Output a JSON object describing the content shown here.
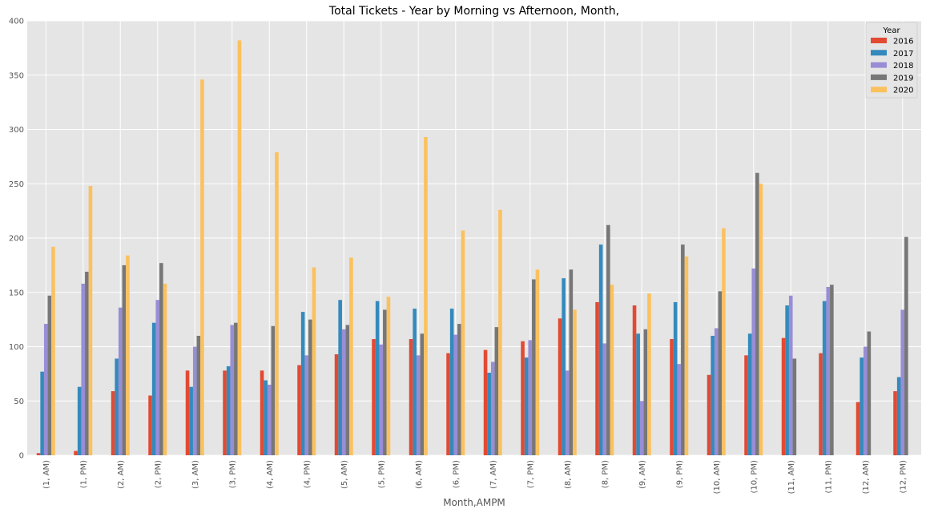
{
  "chart_data": {
    "type": "bar",
    "title": "Total Tickets - Year by Morning vs Afternoon, Month,",
    "xlabel": "Month,AMPM",
    "ylabel": "",
    "ylim": [
      0,
      400
    ],
    "yticks": [
      0,
      50,
      100,
      150,
      200,
      250,
      300,
      350,
      400
    ],
    "grid": true,
    "legend": {
      "title": "Year",
      "placement": "top-right"
    },
    "categories": [
      "(1, AM)",
      "(1, PM)",
      "(2, AM)",
      "(2, PM)",
      "(3, AM)",
      "(3, PM)",
      "(4, AM)",
      "(4, PM)",
      "(5, AM)",
      "(5, PM)",
      "(6, AM)",
      "(6, PM)",
      "(7, AM)",
      "(7, PM)",
      "(8, AM)",
      "(8, PM)",
      "(9, AM)",
      "(9, PM)",
      "(10, AM)",
      "(10, PM)",
      "(11, AM)",
      "(11, PM)",
      "(12, AM)",
      "(12, PM)"
    ],
    "series": [
      {
        "name": "2016",
        "color": "#E24A33",
        "values": [
          2,
          4,
          59,
          55,
          78,
          78,
          78,
          83,
          93,
          107,
          107,
          94,
          97,
          105,
          126,
          141,
          138,
          107,
          74,
          92,
          108,
          94,
          49,
          59
        ]
      },
      {
        "name": "2017",
        "color": "#348ABD",
        "values": [
          77,
          63,
          89,
          122,
          63,
          82,
          69,
          132,
          143,
          142,
          135,
          135,
          76,
          90,
          163,
          194,
          112,
          141,
          110,
          112,
          138,
          142,
          90,
          72
        ]
      },
      {
        "name": "2018",
        "color": "#988ED5",
        "values": [
          121,
          158,
          136,
          143,
          100,
          120,
          65,
          92,
          116,
          102,
          92,
          111,
          86,
          106,
          78,
          103,
          50,
          84,
          117,
          172,
          147,
          155,
          100,
          134
        ]
      },
      {
        "name": "2019",
        "color": "#777777",
        "values": [
          147,
          169,
          175,
          177,
          110,
          122,
          119,
          125,
          120,
          134,
          112,
          121,
          118,
          162,
          171,
          212,
          116,
          194,
          151,
          260,
          89,
          157,
          114,
          201
        ]
      },
      {
        "name": "2020",
        "color": "#FBC15E",
        "values": [
          192,
          248,
          184,
          158,
          346,
          382,
          279,
          173,
          182,
          146,
          293,
          207,
          226,
          171,
          134,
          157,
          149,
          183,
          209,
          250,
          0,
          0,
          0,
          0
        ]
      }
    ]
  }
}
